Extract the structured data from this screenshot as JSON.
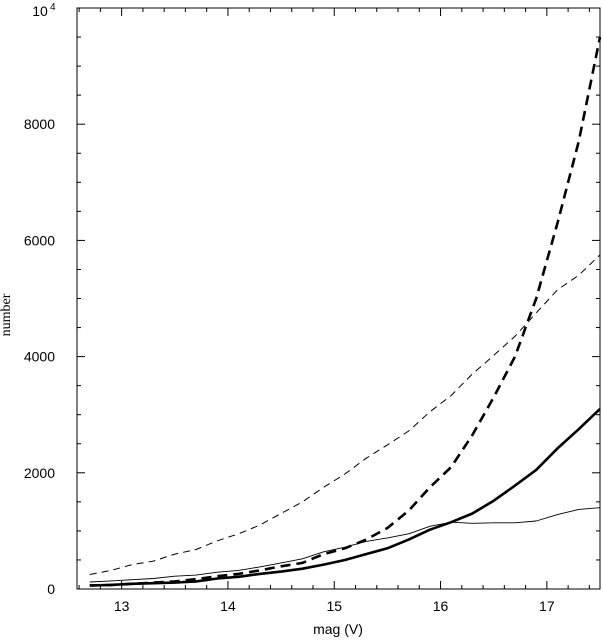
{
  "chart_data": {
    "type": "line",
    "xlabel": "mag (V)",
    "ylabel": "number",
    "xlim": [
      12.58,
      17.5
    ],
    "ylim": [
      0,
      10000
    ],
    "x_ticks": [
      13,
      14,
      15,
      16,
      17
    ],
    "y_ticks": [
      0,
      2000,
      4000,
      6000,
      8000
    ],
    "y_top_label_base": "10",
    "y_top_label_exp": "4",
    "grid": false,
    "legend": "none",
    "series": [
      {
        "style": "thick-dashed",
        "x": [
          12.7,
          12.9,
          13.1,
          13.3,
          13.5,
          13.7,
          13.9,
          14.1,
          14.3,
          14.5,
          14.7,
          14.9,
          15.1,
          15.3,
          15.5,
          15.7,
          15.9,
          16.1,
          16.3,
          16.5,
          16.7,
          16.9,
          17.1,
          17.3,
          17.5
        ],
        "values": [
          60,
          70,
          90,
          110,
          130,
          170,
          220,
          260,
          320,
          390,
          450,
          600,
          700,
          850,
          1050,
          1350,
          1750,
          2100,
          2650,
          3300,
          4000,
          5000,
          6300,
          7700,
          9500
        ]
      },
      {
        "style": "thin-dashed",
        "x": [
          12.7,
          12.9,
          13.1,
          13.3,
          13.5,
          13.7,
          13.9,
          14.1,
          14.3,
          14.5,
          14.7,
          14.9,
          15.1,
          15.3,
          15.5,
          15.7,
          15.9,
          16.1,
          16.3,
          16.5,
          16.7,
          16.9,
          17.1,
          17.3,
          17.5
        ],
        "values": [
          250,
          320,
          420,
          480,
          600,
          680,
          830,
          950,
          1100,
          1300,
          1500,
          1750,
          1980,
          2250,
          2480,
          2720,
          3050,
          3330,
          3700,
          4020,
          4350,
          4750,
          5150,
          5400,
          5750
        ]
      },
      {
        "style": "thick-solid",
        "x": [
          12.7,
          12.9,
          13.1,
          13.3,
          13.5,
          13.7,
          13.9,
          14.1,
          14.3,
          14.5,
          14.7,
          14.9,
          15.1,
          15.3,
          15.5,
          15.7,
          15.9,
          16.1,
          16.3,
          16.5,
          16.7,
          16.9,
          17.1,
          17.3,
          17.5
        ],
        "values": [
          60,
          70,
          90,
          100,
          110,
          130,
          180,
          210,
          260,
          300,
          350,
          420,
          500,
          600,
          700,
          850,
          1020,
          1150,
          1300,
          1520,
          1780,
          2050,
          2420,
          2750,
          3100
        ]
      },
      {
        "style": "thin-solid",
        "x": [
          12.7,
          12.9,
          13.1,
          13.3,
          13.5,
          13.7,
          13.9,
          14.1,
          14.3,
          14.5,
          14.7,
          14.9,
          15.1,
          15.3,
          15.5,
          15.7,
          15.9,
          16.1,
          16.3,
          16.5,
          16.7,
          16.9,
          17.1,
          17.3,
          17.5
        ],
        "values": [
          120,
          140,
          160,
          180,
          220,
          240,
          290,
          320,
          380,
          450,
          520,
          640,
          720,
          820,
          880,
          950,
          1080,
          1150,
          1130,
          1140,
          1140,
          1170,
          1280,
          1370,
          1400
        ]
      }
    ]
  }
}
